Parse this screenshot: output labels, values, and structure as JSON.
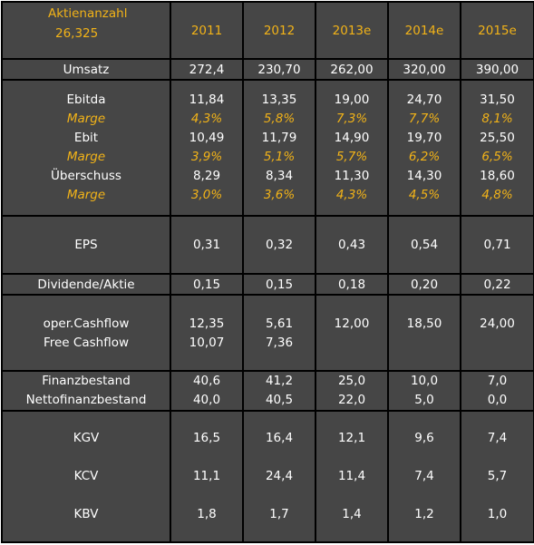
{
  "header": {
    "label_line1": "Aktienanzahl",
    "label_line2": "26,325",
    "years": [
      "2011",
      "2012",
      "2013e",
      "2014e",
      "2015e"
    ]
  },
  "umsatz": {
    "label": "Umsatz",
    "values": [
      "272,4",
      "230,70",
      "262,00",
      "320,00",
      "390,00"
    ]
  },
  "ertrag": {
    "ebitda": {
      "label": "Ebitda",
      "values": [
        "11,84",
        "13,35",
        "19,00",
        "24,70",
        "31,50"
      ]
    },
    "marge1": {
      "label": "Marge",
      "values": [
        "4,3%",
        "5,8%",
        "7,3%",
        "7,7%",
        "8,1%"
      ]
    },
    "ebit": {
      "label": "Ebit",
      "values": [
        "10,49",
        "11,79",
        "14,90",
        "19,70",
        "25,50"
      ]
    },
    "marge2": {
      "label": "Marge",
      "values": [
        "3,9%",
        "5,1%",
        "5,7%",
        "6,2%",
        "6,5%"
      ]
    },
    "ueberschuss": {
      "label": "Überschuss",
      "values": [
        "8,29",
        "8,34",
        "11,30",
        "14,30",
        "18,60"
      ]
    },
    "marge3": {
      "label": "Marge",
      "values": [
        "3,0%",
        "3,6%",
        "4,3%",
        "4,5%",
        "4,8%"
      ]
    }
  },
  "eps": {
    "label": "EPS",
    "values": [
      "0,31",
      "0,32",
      "0,43",
      "0,54",
      "0,71"
    ]
  },
  "dividende": {
    "label": "Dividende/Aktie",
    "values": [
      "0,15",
      "0,15",
      "0,18",
      "0,20",
      "0,22"
    ]
  },
  "cashflow": {
    "oper": {
      "label": "oper.Cashflow",
      "values": [
        "12,35",
        "5,61",
        "12,00",
        "18,50",
        "24,00"
      ]
    },
    "free": {
      "label": "Free Cashflow",
      "values": [
        "10,07",
        "7,36",
        "",
        "",
        ""
      ]
    }
  },
  "finanz": {
    "bestand": {
      "label": "Finanzbestand",
      "values": [
        "40,6",
        "41,2",
        "25,0",
        "10,0",
        "7,0"
      ]
    },
    "netto": {
      "label": "Nettofinanzbestand",
      "values": [
        "40,0",
        "40,5",
        "22,0",
        "5,0",
        "0,0"
      ]
    }
  },
  "kgv": {
    "label": "KGV",
    "values": [
      "16,5",
      "16,4",
      "12,1",
      "9,6",
      "7,4"
    ]
  },
  "kcv": {
    "label": "KCV",
    "values": [
      "11,1",
      "24,4",
      "11,4",
      "7,4",
      "5,7"
    ]
  },
  "kbv": {
    "label": "KBV",
    "values": [
      "1,8",
      "1,7",
      "1,4",
      "1,2",
      "1,0"
    ]
  },
  "colors": {
    "background": "#464646",
    "border": "#000000",
    "text": "#ffffff",
    "highlight": "#f2b318"
  }
}
